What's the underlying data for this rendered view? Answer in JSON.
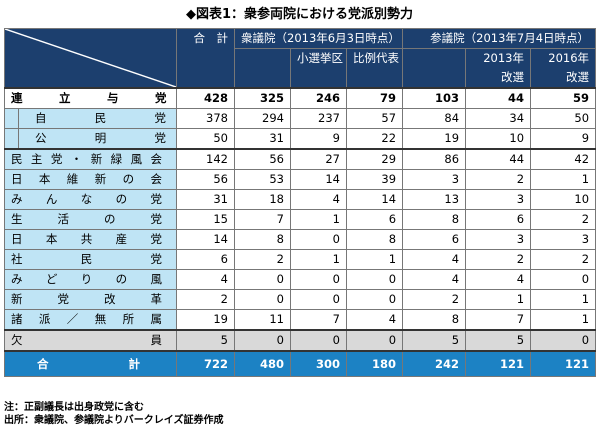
{
  "title": "◆図表1：衆参両院における党派別勢力",
  "headers": {
    "total": "合　計",
    "shu": "衆議院（2013年6月3日時点）",
    "shu_small": "小選挙区",
    "shu_pr": "比例代表",
    "san": "参議院（2013年7月4日時点）",
    "san_2013": "2013年\n改選",
    "san_2016": "2016年\n改選"
  },
  "rows": [
    {
      "label": "連立与党",
      "values": [
        "428",
        "325",
        "246",
        "79",
        "103",
        "44",
        "59"
      ]
    },
    {
      "label": "自民党",
      "values": [
        "378",
        "294",
        "237",
        "57",
        "84",
        "34",
        "50"
      ]
    },
    {
      "label": "公明党",
      "values": [
        "50",
        "31",
        "9",
        "22",
        "19",
        "10",
        "9"
      ]
    },
    {
      "label": "民主党・新緑風会",
      "values": [
        "142",
        "56",
        "27",
        "29",
        "86",
        "44",
        "42"
      ]
    },
    {
      "label": "日本維新の会",
      "values": [
        "56",
        "53",
        "14",
        "39",
        "3",
        "2",
        "1"
      ]
    },
    {
      "label": "みんなの党",
      "values": [
        "31",
        "18",
        "4",
        "14",
        "13",
        "3",
        "10"
      ]
    },
    {
      "label": "生活の党",
      "values": [
        "15",
        "7",
        "1",
        "6",
        "8",
        "6",
        "2"
      ]
    },
    {
      "label": "日本共産党",
      "values": [
        "14",
        "8",
        "0",
        "8",
        "6",
        "3",
        "3"
      ]
    },
    {
      "label": "社民党",
      "values": [
        "6",
        "2",
        "1",
        "1",
        "4",
        "2",
        "2"
      ]
    },
    {
      "label": "みどりの風",
      "values": [
        "4",
        "0",
        "0",
        "0",
        "4",
        "4",
        "0"
      ]
    },
    {
      "label": "新党改革",
      "values": [
        "2",
        "0",
        "0",
        "0",
        "2",
        "1",
        "1"
      ]
    },
    {
      "label": "諸派／無所属",
      "values": [
        "19",
        "11",
        "7",
        "4",
        "8",
        "7",
        "1"
      ]
    },
    {
      "label": "欠員",
      "values": [
        "5",
        "0",
        "0",
        "0",
        "5",
        "5",
        "0"
      ]
    },
    {
      "label": "合計",
      "values": [
        "722",
        "480",
        "300",
        "180",
        "242",
        "121",
        "121"
      ]
    }
  ],
  "notes": [
    "注：正副議長は出身政党に含む",
    "出所：衆議院、参議院よりバークレイズ証券作成"
  ],
  "colors": {
    "header_bg": "#1c3f6e",
    "label_bg": "#bfe4f5",
    "sum_bg": "#1c82c4",
    "vacancy_bg": "#d9d9d9"
  }
}
